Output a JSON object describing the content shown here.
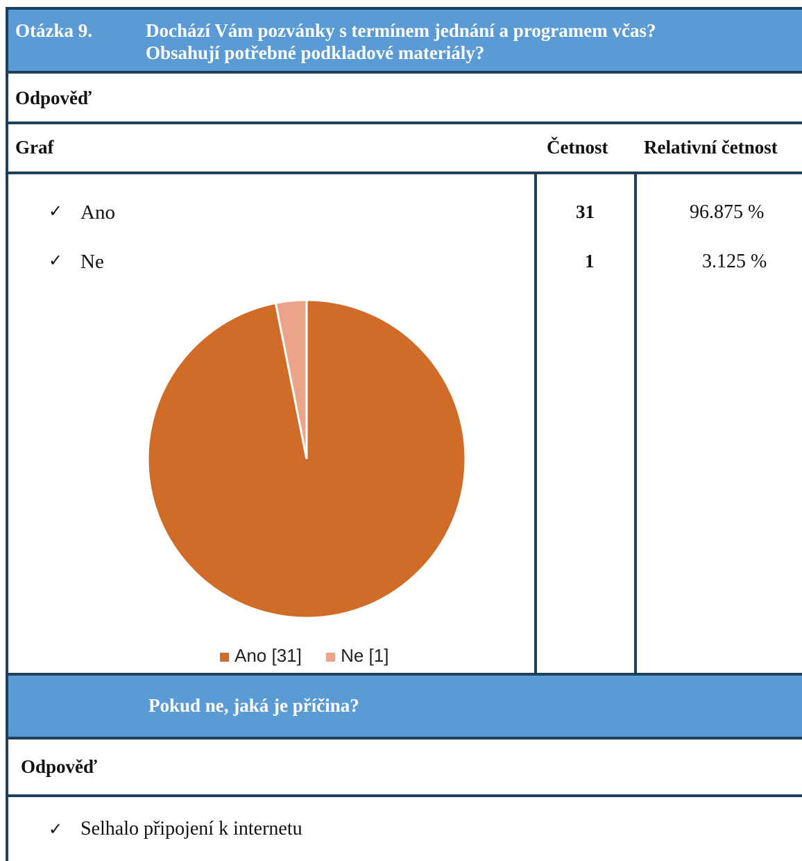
{
  "question": {
    "number": "Otázka 9.",
    "text_line1": "Dochází Vám pozvánky s termínem jednání a programem včas?",
    "text_line2": "Obsahují potřebné podkladové materiály?"
  },
  "answer_label": "Odpověď",
  "table_header": {
    "graph": "Graf",
    "frequency": "Četnost",
    "relative_frequency": "Relativní četnost"
  },
  "options": [
    {
      "label": "Ano",
      "count": "31",
      "relative": "96.875 %"
    },
    {
      "label": "Ne",
      "count": "1",
      "relative": "3.125 %"
    }
  ],
  "check_icon": "✓",
  "chart_data": {
    "type": "pie",
    "categories": [
      "Ano",
      "Ne"
    ],
    "values": [
      31,
      1
    ],
    "colors": [
      "#d06c28",
      "#eba48a"
    ],
    "legend": [
      "Ano [31]",
      "Ne [1]"
    ],
    "legend_position": "bottom"
  },
  "followup": {
    "question": "Pokud ne, jaká je příčina?",
    "answer_label": "Odpověď",
    "answers": [
      "Selhalo připojení k internetu"
    ]
  }
}
